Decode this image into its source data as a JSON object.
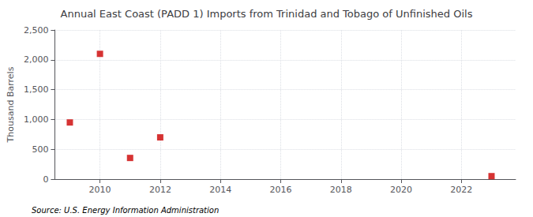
{
  "chart_data": {
    "type": "scatter",
    "title": "Annual East Coast (PADD 1) Imports from Trinidad and Tobago of Unfinished Oils",
    "ylabel": "Thousand Barrels",
    "annotation": "Source: U.S. Energy Information Administration",
    "x": [
      2009,
      2010,
      2011,
      2012,
      2023
    ],
    "values": [
      950,
      2100,
      355,
      700,
      50
    ],
    "color": "#cc0000",
    "marker": "square",
    "xlim": [
      2008.5,
      2023.8
    ],
    "xticks": [
      2010,
      2012,
      2014,
      2016,
      2018,
      2020,
      2022
    ],
    "ylim": [
      0,
      2500
    ],
    "yticks": [
      0,
      500,
      {
        "value": 1000,
        "label": "1,000"
      },
      {
        "value": 1500,
        "label": "1,500"
      },
      {
        "value": 2000,
        "label": "2,000"
      },
      {
        "value": 2500,
        "label": "2,500"
      }
    ],
    "grid": true
  }
}
